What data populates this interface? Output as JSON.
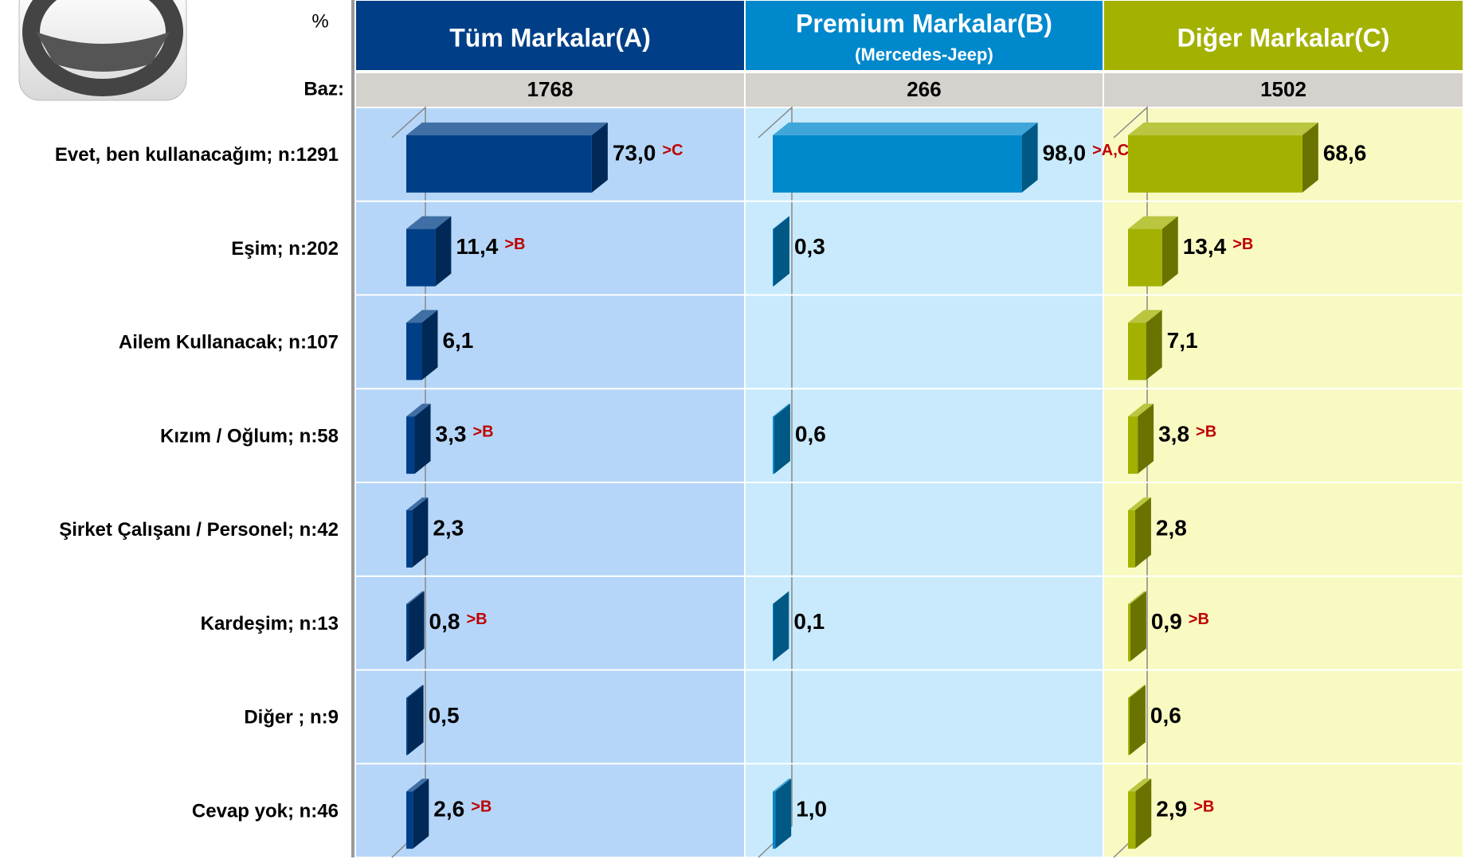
{
  "chart_data": {
    "type": "bar3d",
    "unit": "%",
    "base_label": "Baz:",
    "categories": [
      "Evet, ben kullanacağım; n:1291",
      "Eşim; n:202",
      "Ailem Kullanacak; n:107",
      "Kızım / Oğlum; n:58",
      "Şirket Çalışanı / Personel; n:42",
      "Kardeşim; n:13",
      "Diğer ; n:9",
      "Cevap yok; n:46"
    ],
    "series": [
      {
        "name": "Tüm Markalar(A)",
        "base": 1768,
        "header_color": "#003f87",
        "panel_color": "#b5d6f8",
        "color": "#003f87",
        "values": [
          73.0,
          11.4,
          6.1,
          3.3,
          2.3,
          0.8,
          0.5,
          2.6
        ],
        "value_labels": [
          "73,0",
          "11,4",
          "6,1",
          "3,3",
          "2,3",
          "0,8",
          "0,5",
          "2,6"
        ],
        "significance": [
          ">C",
          ">B",
          null,
          ">B",
          null,
          ">B",
          null,
          ">B"
        ]
      },
      {
        "name": "Premium Markalar(B)",
        "subtitle": "(Mercedes-Jeep)",
        "base": 266,
        "header_color": "#0088cc",
        "panel_color": "#c8eafc",
        "color": "#0088cc",
        "values": [
          98.0,
          0.3,
          null,
          0.6,
          null,
          0.1,
          null,
          1.0
        ],
        "value_labels": [
          "98,0",
          "0,3",
          null,
          "0,6",
          null,
          "0,1",
          null,
          "1,0"
        ],
        "significance": [
          ">A,C",
          null,
          null,
          null,
          null,
          null,
          null,
          null
        ]
      },
      {
        "name": "Diğer Markalar(C)",
        "base": 1502,
        "header_color": "#a3b100",
        "panel_color": "#f8fac2",
        "color": "#a3b100",
        "values": [
          68.6,
          13.4,
          7.1,
          3.8,
          2.8,
          0.9,
          0.6,
          2.9
        ],
        "value_labels": [
          "68,6",
          "13,4",
          "7,1",
          "3,8",
          "2,8",
          "0,9",
          "0,6",
          "2,9"
        ],
        "significance": [
          null,
          ">B",
          null,
          ">B",
          null,
          ">B",
          null,
          ">B"
        ]
      }
    ]
  }
}
